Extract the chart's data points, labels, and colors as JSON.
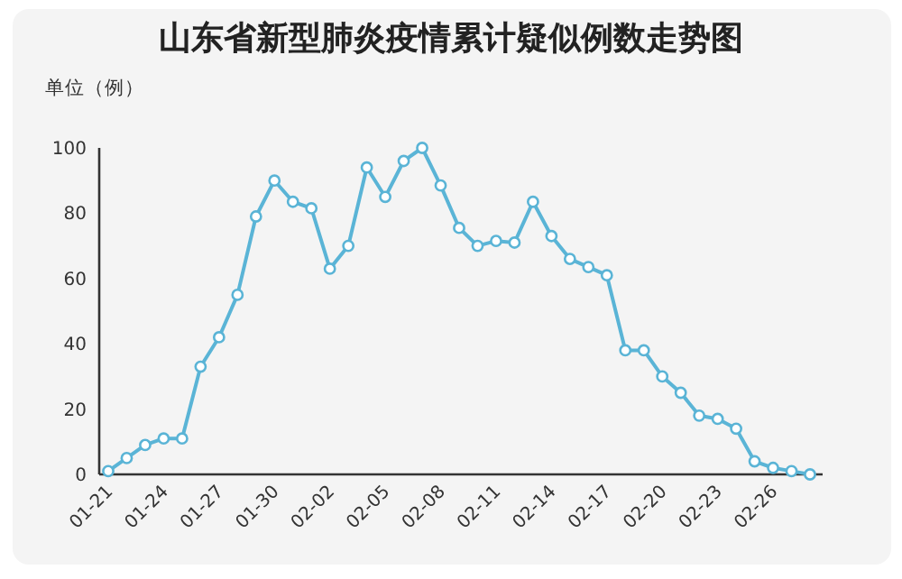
{
  "chart_data": {
    "type": "line",
    "title": "山东省新型肺炎疫情累计疑似例数走势图",
    "ylabel": "单位（例）",
    "categories": [
      "01-21",
      null,
      null,
      "01-24",
      null,
      null,
      "01-27",
      null,
      null,
      "01-30",
      null,
      null,
      "02-02",
      null,
      null,
      "02-05",
      null,
      null,
      "02-08",
      null,
      null,
      "02-11",
      null,
      null,
      "02-14",
      null,
      null,
      "02-17",
      null,
      null,
      "02-20",
      null,
      null,
      "02-23",
      null,
      null,
      "02-26",
      null,
      null
    ],
    "series": [
      {
        "color": "#5ab4d6",
        "values": [
          1,
          5,
          9,
          11,
          11,
          33,
          42,
          55,
          79,
          90,
          83.5,
          81.5,
          63,
          70,
          94,
          85,
          96,
          100,
          88.5,
          75.5,
          70,
          71.5,
          71,
          83.5,
          73,
          66,
          63.5,
          61,
          38,
          38,
          30,
          25,
          18,
          17,
          14,
          4,
          2,
          1,
          0
        ]
      }
    ],
    "ylim": [
      0,
      100
    ],
    "yticks": [
      0,
      20,
      40,
      60,
      80,
      100
    ],
    "grid": false,
    "marker": "circle",
    "line_style": "solid"
  }
}
